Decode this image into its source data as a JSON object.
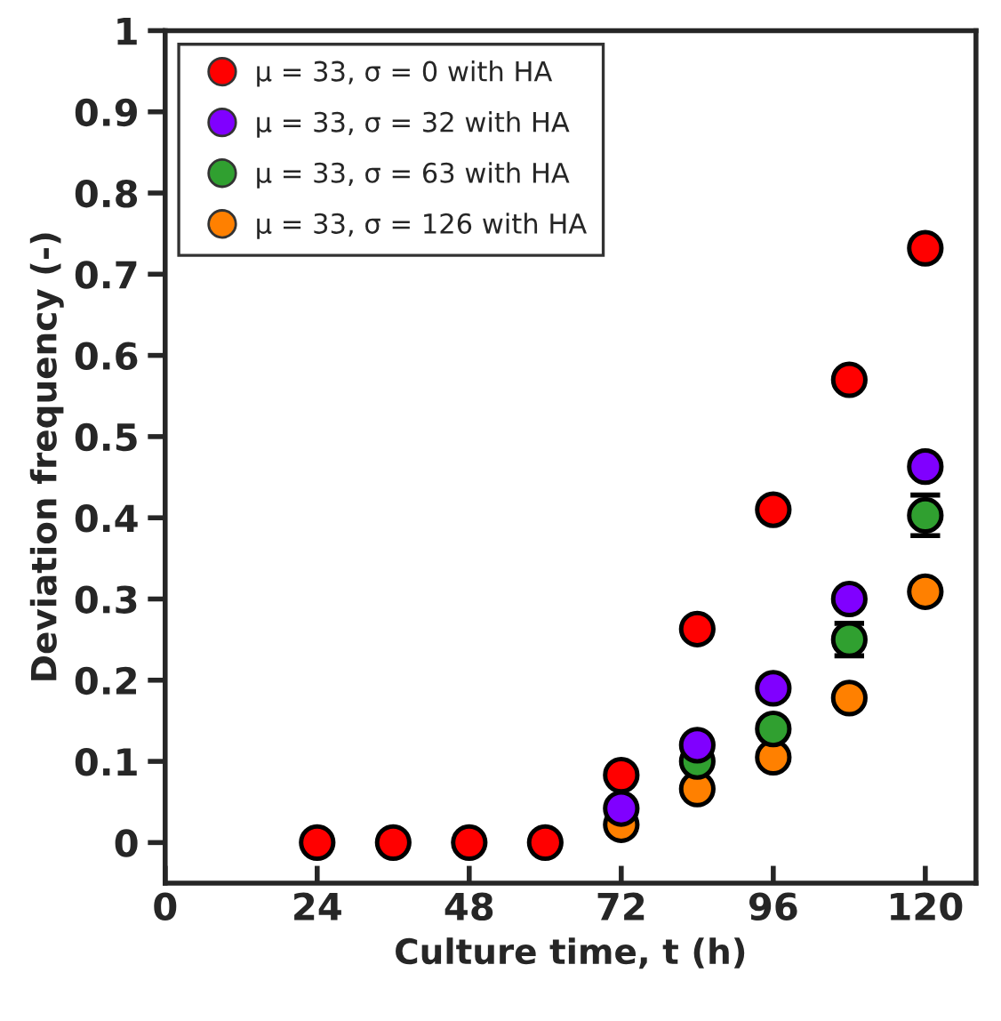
{
  "chart_data": {
    "type": "scatter",
    "xlabel": "Culture time, t (h)",
    "ylabel": "Deviation frequency (-)",
    "xlim": [
      0,
      128
    ],
    "xticks": [
      0,
      24,
      48,
      72,
      96,
      120
    ],
    "ylim": [
      -0.05,
      1
    ],
    "yticks": [
      0,
      0.1,
      0.2,
      0.3,
      0.4,
      0.5,
      0.6,
      0.7,
      0.8,
      0.9,
      1
    ],
    "marker": "circle",
    "legend": "top left",
    "grid": false,
    "series": [
      {
        "name": "μ = 33, σ = 0 with HA",
        "color": "#ff0000",
        "x": [
          24,
          36,
          48,
          60,
          72,
          84,
          96,
          108,
          120
        ],
        "values": [
          0,
          0,
          0,
          0,
          0.083,
          0.263,
          0.41,
          0.57,
          0.732
        ]
      },
      {
        "name": "μ = 33, σ = 32 with HA",
        "color": "#8000ff",
        "x": [
          72,
          84,
          96,
          108,
          120
        ],
        "values": [
          0.042,
          0.12,
          0.19,
          0.3,
          0.463
        ]
      },
      {
        "name": "μ = 33, σ = 63 with HA",
        "color": "#30a030",
        "x": [
          84,
          96,
          108,
          120
        ],
        "values": [
          0.1,
          0.14,
          0.25,
          0.403
        ],
        "errors": [
          null,
          null,
          0.02,
          0.025
        ]
      },
      {
        "name": "μ = 33, σ = 126 with HA",
        "color": "#ff8000",
        "x": [
          72,
          84,
          96,
          108,
          120
        ],
        "values": [
          0.022,
          0.066,
          0.105,
          0.178,
          0.309
        ]
      }
    ]
  }
}
